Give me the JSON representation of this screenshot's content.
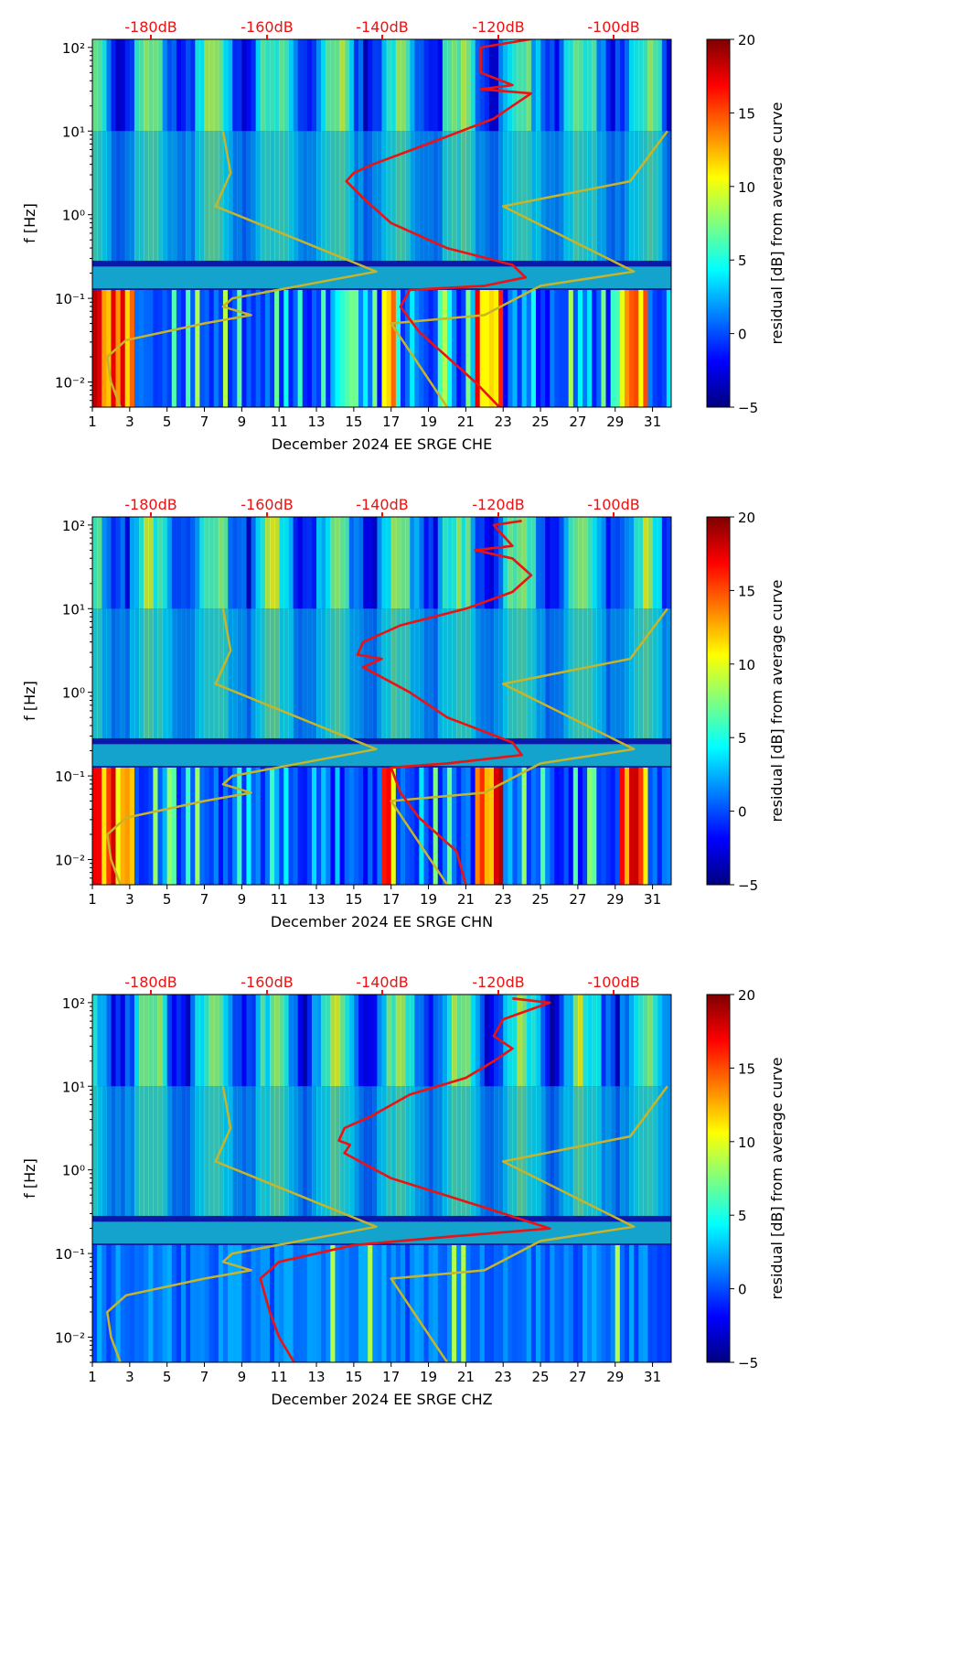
{
  "figure_title": "",
  "colorbar": {
    "label": "residual [dB] from average curve",
    "ticks": [
      "20",
      "15",
      "10",
      "5",
      "0",
      "−5"
    ],
    "stops": [
      "#00007f",
      "#0000ff",
      "#007fff",
      "#00ffff",
      "#7fff7f",
      "#ffff00",
      "#ff7f00",
      "#ff0000",
      "#7f0000"
    ]
  },
  "accent_colors": {
    "noise_model": "#c8b428",
    "psd_curve": "#ee1111",
    "db_labels": "#ee1111"
  },
  "chart_data": [
    {
      "type": "heatmap",
      "channel": "CHE",
      "xlabel": "December 2024 EE SRGE  CHE",
      "ylabel": "f [Hz]",
      "x_ticks": [
        "1",
        "3",
        "5",
        "7",
        "9",
        "11",
        "13",
        "15",
        "17",
        "19",
        "21",
        "23",
        "25",
        "27",
        "29",
        "31"
      ],
      "y_ticks": [
        "10²",
        "10¹",
        "10⁰",
        "10⁻¹",
        "10⁻²"
      ],
      "db_ticks": [
        "-180dB",
        "-160dB",
        "-140dB",
        "-120dB",
        "-100dB"
      ],
      "xlim": [
        1,
        32
      ],
      "ylim_hz": [
        0.005,
        125
      ],
      "zlim_db": [
        -5,
        20
      ],
      "noise_model_curve": {
        "name": "noise model envelope (day, log10 f)",
        "points": [
          [
            8.0,
            1.0
          ],
          [
            8.4,
            0.5
          ],
          [
            7.6,
            0.1
          ],
          [
            16.2,
            -0.68
          ],
          [
            8.5,
            -1.0
          ],
          [
            8.0,
            -1.1
          ],
          [
            9.5,
            -1.2
          ],
          [
            7.0,
            -1.3
          ],
          [
            2.8,
            -1.5
          ],
          [
            1.8,
            -1.7
          ],
          [
            2.0,
            -2.0
          ],
          [
            2.5,
            -2.3
          ]
        ]
      },
      "noise_model_curve_right": {
        "name": "noise model envelope right branch",
        "points": [
          [
            31.8,
            1.0
          ],
          [
            29.8,
            0.4
          ],
          [
            23.0,
            0.1
          ],
          [
            30.0,
            -0.68
          ],
          [
            25.0,
            -0.85
          ],
          [
            22.0,
            -1.2
          ],
          [
            17.0,
            -1.3
          ],
          [
            20.0,
            -2.3
          ]
        ]
      },
      "psd_curve": {
        "name": "median PSD",
        "points": [
          [
            24.5,
            2.1
          ],
          [
            21.8,
            2.0
          ],
          [
            21.8,
            1.7
          ],
          [
            23.5,
            1.55
          ],
          [
            21.8,
            1.5
          ],
          [
            24.5,
            1.45
          ],
          [
            23.5,
            1.3
          ],
          [
            22.5,
            1.15
          ],
          [
            19.0,
            0.85
          ],
          [
            16.0,
            0.6
          ],
          [
            15.0,
            0.5
          ],
          [
            14.6,
            0.4
          ],
          [
            15.5,
            0.2
          ],
          [
            17.0,
            -0.1
          ],
          [
            20.0,
            -0.4
          ],
          [
            23.5,
            -0.6
          ],
          [
            24.2,
            -0.75
          ],
          [
            22.0,
            -0.85
          ],
          [
            18.0,
            -0.9
          ],
          [
            17.5,
            -1.1
          ],
          [
            18.5,
            -1.4
          ],
          [
            20.0,
            -1.7
          ],
          [
            21.5,
            -2.0
          ],
          [
            22.8,
            -2.3
          ]
        ]
      }
    },
    {
      "type": "heatmap",
      "channel": "CHN",
      "xlabel": "December 2024 EE SRGE  CHN",
      "ylabel": "f [Hz]",
      "x_ticks": [
        "1",
        "3",
        "5",
        "7",
        "9",
        "11",
        "13",
        "15",
        "17",
        "19",
        "21",
        "23",
        "25",
        "27",
        "29",
        "31"
      ],
      "y_ticks": [
        "10²",
        "10¹",
        "10⁰",
        "10⁻¹",
        "10⁻²"
      ],
      "db_ticks": [
        "-180dB",
        "-160dB",
        "-140dB",
        "-120dB",
        "-100dB"
      ],
      "xlim": [
        1,
        32
      ],
      "ylim_hz": [
        0.005,
        125
      ],
      "zlim_db": [
        -5,
        20
      ],
      "noise_model_curve": {
        "name": "noise model envelope (day, log10 f)",
        "points": [
          [
            8.0,
            1.0
          ],
          [
            8.4,
            0.5
          ],
          [
            7.6,
            0.1
          ],
          [
            16.2,
            -0.68
          ],
          [
            8.5,
            -1.0
          ],
          [
            8.0,
            -1.1
          ],
          [
            9.5,
            -1.2
          ],
          [
            7.0,
            -1.3
          ],
          [
            2.8,
            -1.5
          ],
          [
            1.8,
            -1.7
          ],
          [
            2.0,
            -2.0
          ],
          [
            2.5,
            -2.3
          ]
        ]
      },
      "noise_model_curve_right": {
        "name": "noise model envelope right branch",
        "points": [
          [
            31.8,
            1.0
          ],
          [
            29.8,
            0.4
          ],
          [
            23.0,
            0.1
          ],
          [
            30.0,
            -0.68
          ],
          [
            25.0,
            -0.85
          ],
          [
            22.0,
            -1.2
          ],
          [
            17.0,
            -1.3
          ],
          [
            20.0,
            -2.3
          ]
        ]
      },
      "psd_curve": {
        "name": "median PSD",
        "points": [
          [
            24.0,
            2.05
          ],
          [
            22.5,
            2.0
          ],
          [
            23.5,
            1.75
          ],
          [
            21.5,
            1.7
          ],
          [
            23.5,
            1.6
          ],
          [
            24.5,
            1.4
          ],
          [
            23.5,
            1.2
          ],
          [
            21.0,
            1.0
          ],
          [
            17.5,
            0.8
          ],
          [
            15.5,
            0.6
          ],
          [
            15.2,
            0.45
          ],
          [
            16.5,
            0.4
          ],
          [
            15.5,
            0.3
          ],
          [
            18.0,
            0.0
          ],
          [
            20.0,
            -0.3
          ],
          [
            23.5,
            -0.6
          ],
          [
            24.0,
            -0.75
          ],
          [
            20.0,
            -0.85
          ],
          [
            17.0,
            -0.9
          ],
          [
            17.5,
            -1.2
          ],
          [
            18.5,
            -1.5
          ],
          [
            20.5,
            -1.9
          ],
          [
            21.0,
            -2.3
          ]
        ]
      }
    },
    {
      "type": "heatmap",
      "channel": "CHZ",
      "xlabel": "December 2024 EE SRGE  CHZ",
      "ylabel": "f [Hz]",
      "x_ticks": [
        "1",
        "3",
        "5",
        "7",
        "9",
        "11",
        "13",
        "15",
        "17",
        "19",
        "21",
        "23",
        "25",
        "27",
        "29",
        "31"
      ],
      "y_ticks": [
        "10²",
        "10¹",
        "10⁰",
        "10⁻¹",
        "10⁻²"
      ],
      "db_ticks": [
        "-180dB",
        "-160dB",
        "-140dB",
        "-120dB",
        "-100dB"
      ],
      "xlim": [
        1,
        32
      ],
      "ylim_hz": [
        0.005,
        125
      ],
      "zlim_db": [
        -5,
        20
      ],
      "noise_model_curve": {
        "name": "noise model envelope (day, log10 f)",
        "points": [
          [
            8.0,
            1.0
          ],
          [
            8.4,
            0.5
          ],
          [
            7.6,
            0.1
          ],
          [
            16.2,
            -0.68
          ],
          [
            8.5,
            -1.0
          ],
          [
            8.0,
            -1.1
          ],
          [
            9.5,
            -1.2
          ],
          [
            7.0,
            -1.3
          ],
          [
            2.8,
            -1.5
          ],
          [
            1.8,
            -1.7
          ],
          [
            2.0,
            -2.0
          ],
          [
            2.5,
            -2.3
          ]
        ]
      },
      "noise_model_curve_right": {
        "name": "noise model envelope right branch",
        "points": [
          [
            31.8,
            1.0
          ],
          [
            29.8,
            0.4
          ],
          [
            23.0,
            0.1
          ],
          [
            30.0,
            -0.68
          ],
          [
            25.0,
            -0.85
          ],
          [
            22.0,
            -1.2
          ],
          [
            17.0,
            -1.3
          ],
          [
            20.0,
            -2.3
          ]
        ]
      },
      "psd_curve": {
        "name": "median PSD",
        "points": [
          [
            23.5,
            2.05
          ],
          [
            25.5,
            2.0
          ],
          [
            23.0,
            1.8
          ],
          [
            22.5,
            1.6
          ],
          [
            23.5,
            1.45
          ],
          [
            22.5,
            1.3
          ],
          [
            21.0,
            1.1
          ],
          [
            18.0,
            0.9
          ],
          [
            16.0,
            0.65
          ],
          [
            14.5,
            0.5
          ],
          [
            14.2,
            0.35
          ],
          [
            14.8,
            0.3
          ],
          [
            14.5,
            0.2
          ],
          [
            17.0,
            -0.1
          ],
          [
            22.0,
            -0.45
          ],
          [
            25.5,
            -0.7
          ],
          [
            20.0,
            -0.8
          ],
          [
            15.0,
            -0.9
          ],
          [
            11.0,
            -1.1
          ],
          [
            10.0,
            -1.3
          ],
          [
            10.5,
            -1.7
          ],
          [
            11.0,
            -2.0
          ],
          [
            11.8,
            -2.3
          ]
        ]
      }
    }
  ]
}
